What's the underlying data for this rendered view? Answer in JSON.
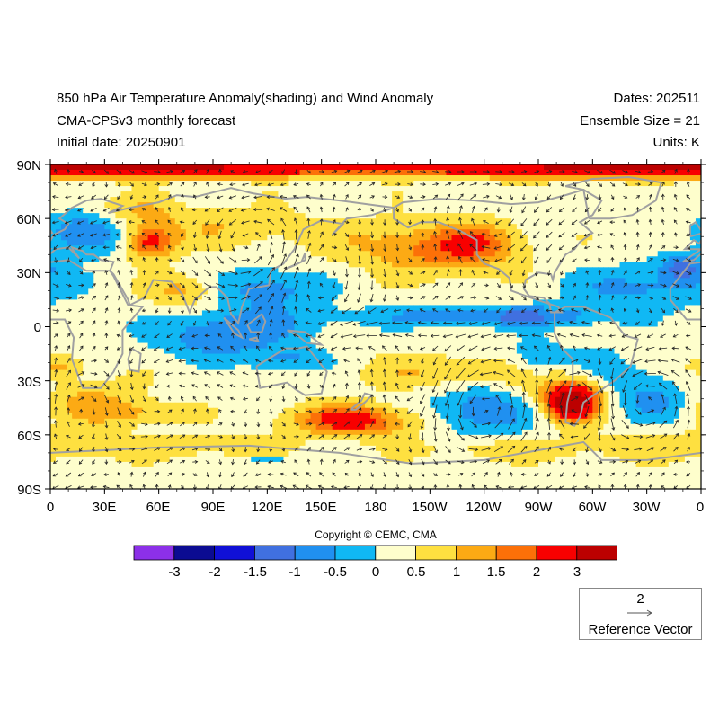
{
  "header": {
    "title": "850 hPa Air Temperature Anomaly(shading) and Wind Anomaly",
    "subtitle": "CMA-CPSv3 monthly forecast",
    "initial_date": "Initial date: 20250901",
    "dates": "Dates: 202511",
    "ensemble": "Ensemble Size = 21",
    "units": "Units: K"
  },
  "axes": {
    "x_ticks": [
      "0",
      "30E",
      "60E",
      "90E",
      "120E",
      "150E",
      "180",
      "150W",
      "120W",
      "90W",
      "60W",
      "30W",
      "0"
    ],
    "y_ticks": [
      "90N",
      "60N",
      "30N",
      "0",
      "30S",
      "60S",
      "90S"
    ]
  },
  "colorbar": {
    "levels": [
      "-3",
      "-2",
      "-1.5",
      "-1",
      "-0.5",
      "0",
      "0.5",
      "1",
      "1.5",
      "2",
      "3"
    ],
    "colors": [
      "#8c30e8",
      "#0b0b92",
      "#1010d6",
      "#4070e0",
      "#2090f0",
      "#10b8f4",
      "#fefecc",
      "#fee040",
      "#fcaa14",
      "#fc7008",
      "#f80000",
      "#bc0000"
    ]
  },
  "copyright": "Copyright © CEMC, CMA",
  "reference_vector": {
    "magnitude": "2",
    "label": "Reference Vector"
  },
  "map_colors": {
    "coastline": "#a0a0a0",
    "vector": "#222222",
    "frame": "#000000"
  }
}
